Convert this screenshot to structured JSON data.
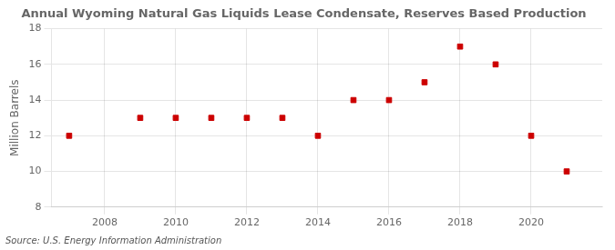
{
  "chart_data": {
    "type": "scatter",
    "title": "Annual Wyoming Natural Gas Liquids Lease Condensate, Reserves Based Production",
    "ylabel": "Million Barrels",
    "source": "Source: U.S. Energy Information Administration",
    "x": [
      2007,
      2009,
      2010,
      2011,
      2012,
      2013,
      2014,
      2015,
      2016,
      2017,
      2018,
      2019,
      2020,
      2021
    ],
    "values": [
      12.0,
      13.0,
      13.0,
      13.0,
      13.0,
      13.0,
      12.0,
      14.0,
      14.0,
      15.0,
      17.0,
      16.0,
      12.0,
      10.0
    ],
    "color": "#cc0000",
    "marker": "square",
    "xlim": [
      2006.5,
      2022.0
    ],
    "xticks": [
      2008,
      2010,
      2012,
      2014,
      2016,
      2018,
      2020
    ],
    "ylim": [
      8,
      18
    ],
    "yticks": [
      8,
      10,
      12,
      14,
      16,
      18
    ],
    "grid": true
  }
}
